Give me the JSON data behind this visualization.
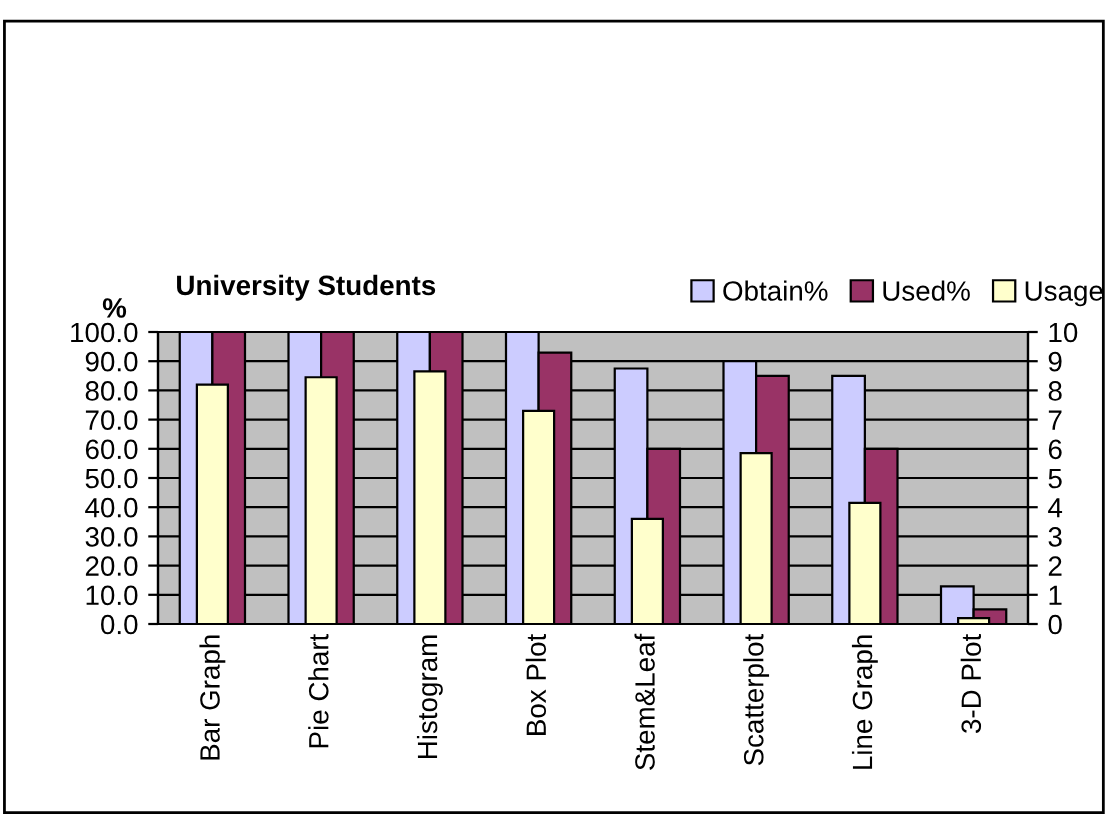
{
  "chart_data": {
    "type": "bar",
    "title": "University Students",
    "ylabel": "%",
    "categories": [
      "Bar Graph",
      "Pie Chart",
      "Histogram",
      "Box Plot",
      "Stem&Leaf",
      "Scatterplot",
      "Line Graph",
      "3-D Plot"
    ],
    "series": [
      {
        "name": "Obtain%",
        "color": "#ccccff",
        "values": [
          100,
          100,
          100,
          100,
          87.5,
          90,
          85,
          12.9
        ]
      },
      {
        "name": "Used%",
        "color": "#993366",
        "values": [
          100,
          100,
          100,
          92.9,
          60,
          85,
          60,
          5
        ]
      },
      {
        "name": "Usage",
        "color": "#ffffcc",
        "axis": "y2",
        "values": [
          8.2,
          8.45,
          8.65,
          7.3,
          3.6,
          5.85,
          4.15,
          0.2
        ]
      }
    ],
    "ylim": [
      0,
      100
    ],
    "yticks": [
      {
        "value": 0,
        "label": "0.0"
      },
      {
        "value": 10,
        "label": "10.0"
      },
      {
        "value": 20,
        "label": "20.0"
      },
      {
        "value": 30,
        "label": "30.0"
      },
      {
        "value": 40,
        "label": "40.0"
      },
      {
        "value": 50,
        "label": "50.0"
      },
      {
        "value": 60,
        "label": "60.0"
      },
      {
        "value": 70,
        "label": "70.0"
      },
      {
        "value": 80,
        "label": "80.0"
      },
      {
        "value": 90,
        "label": "90.0"
      },
      {
        "value": 100,
        "label": "100.0"
      }
    ],
    "y2lim": [
      0,
      10
    ],
    "y2ticks": [
      0,
      1,
      2,
      3,
      4,
      5,
      6,
      7,
      8,
      9,
      10
    ],
    "grid": "y",
    "legend": "top right"
  }
}
